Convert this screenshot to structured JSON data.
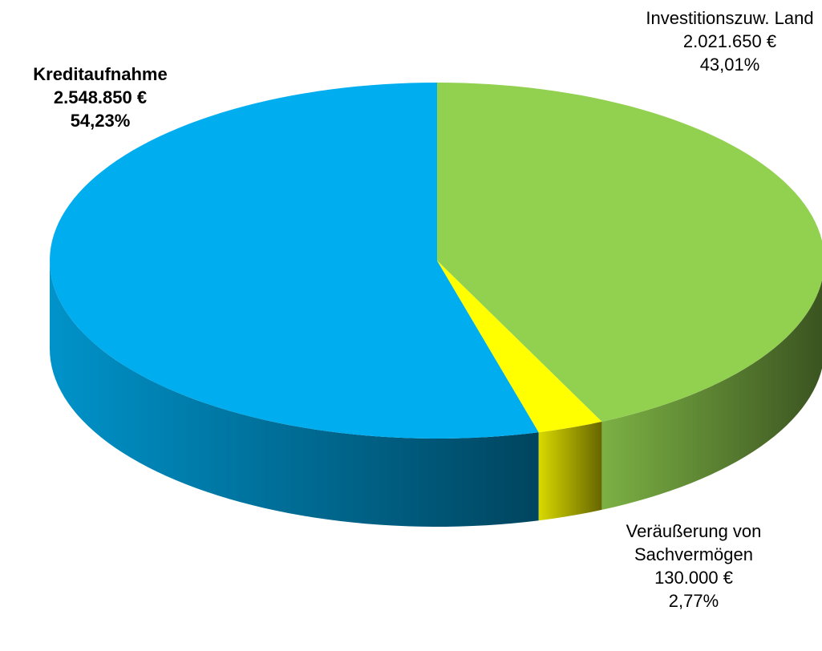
{
  "chart_data": {
    "type": "pie3d",
    "categories": [
      "Kreditaufnahme",
      "Investitionszuw. Land",
      "Veräußerung von Sachvermögen"
    ],
    "values": [
      2548850,
      2021650,
      130000
    ],
    "value_labels": [
      "2.548.850 €",
      "2.021.650 €",
      "130.000 €"
    ],
    "percentages": [
      54.23,
      43.01,
      2.77
    ],
    "percentage_labels": [
      "54,23%",
      "43,01%",
      "2,77%"
    ],
    "colors": [
      "#00adee",
      "#92d050",
      "#ffff00"
    ]
  }
}
